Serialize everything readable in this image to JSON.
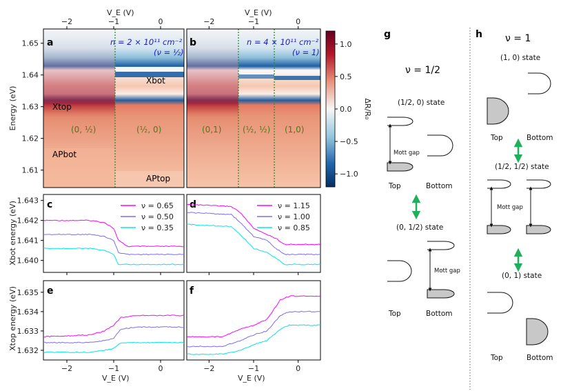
{
  "heatmaps": [
    {
      "panel": "a",
      "density": "n = 2 × 10¹¹ cm⁻²",
      "filling": "(ν = ½)",
      "labels": {
        "xbot": "Xbot",
        "xtop": "Xtop",
        "apbot": "APbot",
        "aptop": "APtop"
      },
      "regions": [
        "(0, ½)",
        "(½, 0)"
      ],
      "transitions": [
        -0.95
      ]
    },
    {
      "panel": "b",
      "density": "n = 4 × 10¹¹ cm⁻²",
      "filling": "(ν = 1)",
      "regions": [
        "(0,1)",
        "(½, ½)",
        "(1,0)"
      ],
      "transitions": [
        -1.3,
        -0.55
      ]
    }
  ],
  "colorbar": {
    "label": "ΔR/R₀",
    "ticks": [
      "1.0",
      "0.5",
      "0.0",
      "−0.5",
      "−1.0"
    ],
    "range": [
      -1.2,
      1.2
    ]
  },
  "top_axis_label": "V_E (V)",
  "bottom_axis_label": "V_E (V)",
  "x_ticks": [
    "−2",
    "−1",
    "0"
  ],
  "heatmap_y_label": "Energy (eV)",
  "heatmap_y_ticks": [
    "1.65",
    "1.64",
    "1.63",
    "1.62",
    "1.61"
  ],
  "chart_data": [
    {
      "type": "line",
      "panel": "c",
      "title": "",
      "xlabel": "",
      "ylabel": "Xbot energy (eV)",
      "xlim": [
        -2.5,
        0.5
      ],
      "ylim": [
        1.6394,
        1.6433
      ],
      "yticks": [
        "1.643",
        "1.642",
        "1.641",
        "1.640"
      ],
      "series": [
        {
          "name": "ν = 0.65",
          "color": "#ff00ff",
          "x": [
            -2.5,
            -1.5,
            -1.2,
            -1.0,
            -0.9,
            -0.7,
            0.5
          ],
          "values": [
            1.642,
            1.642,
            1.6419,
            1.6416,
            1.641,
            1.6407,
            1.6407
          ]
        },
        {
          "name": "ν = 0.50",
          "color": "#7b6cf0",
          "x": [
            -2.5,
            -1.5,
            -1.2,
            -1.0,
            -0.9,
            -0.7,
            0.5
          ],
          "values": [
            1.6413,
            1.6413,
            1.6412,
            1.641,
            1.6404,
            1.6403,
            1.6403
          ]
        },
        {
          "name": "ν = 0.35",
          "color": "#00e5e5",
          "x": [
            -2.5,
            -1.5,
            -1.2,
            -1.0,
            -0.9,
            -0.7,
            0.5
          ],
          "values": [
            1.6406,
            1.6406,
            1.6405,
            1.6403,
            1.6398,
            1.6398,
            1.6398
          ]
        }
      ]
    },
    {
      "type": "line",
      "panel": "d",
      "title": "",
      "xlabel": "",
      "ylabel": "",
      "xlim": [
        -2.5,
        0.5
      ],
      "ylim": [
        1.6394,
        1.6433
      ],
      "series": [
        {
          "name": "ν = 1.15",
          "color": "#ff00ff",
          "x": [
            -2.5,
            -1.5,
            -1.3,
            -1.0,
            -0.7,
            -0.5,
            -0.3,
            0.5
          ],
          "values": [
            1.6428,
            1.6427,
            1.6424,
            1.6416,
            1.6413,
            1.6411,
            1.6408,
            1.6408
          ]
        },
        {
          "name": "ν = 1.00",
          "color": "#7b6cf0",
          "x": [
            -2.5,
            -1.5,
            -1.3,
            -1.0,
            -0.7,
            -0.5,
            -0.3,
            0.5
          ],
          "values": [
            1.6424,
            1.6423,
            1.6419,
            1.6412,
            1.641,
            1.6406,
            1.6403,
            1.6403
          ]
        },
        {
          "name": "ν = 0.85",
          "color": "#00e5e5",
          "x": [
            -2.5,
            -1.5,
            -1.3,
            -1.0,
            -0.7,
            -0.5,
            -0.3,
            0.5
          ],
          "values": [
            1.6418,
            1.6417,
            1.6413,
            1.6406,
            1.6404,
            1.6401,
            1.6398,
            1.6398
          ]
        }
      ]
    },
    {
      "type": "line",
      "panel": "e",
      "title": "",
      "xlabel": "V_E (V)",
      "ylabel": "Xtop energy (eV)",
      "xlim": [
        -2.5,
        0.5
      ],
      "ylim": [
        1.6315,
        1.6356
      ],
      "yticks": [
        "1.635",
        "1.634",
        "1.633",
        "1.632"
      ],
      "series": [
        {
          "name": "ν = 0.65",
          "color": "#ff00ff",
          "x": [
            -2.5,
            -1.5,
            -1.2,
            -1.0,
            -0.85,
            -0.5,
            0.5
          ],
          "values": [
            1.6327,
            1.6328,
            1.633,
            1.6333,
            1.6337,
            1.6338,
            1.6338
          ]
        },
        {
          "name": "ν = 0.50",
          "color": "#7b6cf0",
          "x": [
            -2.5,
            -1.5,
            -1.2,
            -1.0,
            -0.85,
            -0.5,
            0.5
          ],
          "values": [
            1.6324,
            1.6324,
            1.6325,
            1.6326,
            1.6331,
            1.6332,
            1.6332
          ]
        },
        {
          "name": "ν = 0.35",
          "color": "#00e5e5",
          "x": [
            -2.5,
            -1.5,
            -1.2,
            -1.0,
            -0.85,
            -0.5,
            0.5
          ],
          "values": [
            1.6319,
            1.6319,
            1.632,
            1.6321,
            1.6324,
            1.6324,
            1.6324
          ]
        }
      ]
    },
    {
      "type": "line",
      "panel": "f",
      "title": "",
      "xlabel": "V_E (V)",
      "ylabel": "",
      "xlim": [
        -2.5,
        0.5
      ],
      "ylim": [
        1.6315,
        1.6356
      ],
      "series": [
        {
          "name": "ν = 1.15",
          "color": "#ff00ff",
          "x": [
            -2.5,
            -1.7,
            -1.3,
            -1.0,
            -0.7,
            -0.4,
            -0.2,
            0.5
          ],
          "values": [
            1.6327,
            1.6327,
            1.6331,
            1.6333,
            1.6336,
            1.6346,
            1.6348,
            1.6348
          ]
        },
        {
          "name": "ν = 1.00",
          "color": "#7b6cf0",
          "x": [
            -2.5,
            -1.7,
            -1.3,
            -1.0,
            -0.7,
            -0.4,
            -0.2,
            0.5
          ],
          "values": [
            1.6322,
            1.6322,
            1.6325,
            1.6328,
            1.633,
            1.6338,
            1.634,
            1.634
          ]
        },
        {
          "name": "ν = 0.85",
          "color": "#00e5e5",
          "x": [
            -2.5,
            -1.7,
            -1.3,
            -1.0,
            -0.7,
            -0.4,
            -0.2,
            0.5
          ],
          "values": [
            1.6318,
            1.6318,
            1.632,
            1.6323,
            1.6325,
            1.6331,
            1.6333,
            1.6333
          ]
        }
      ]
    }
  ],
  "diagram_g": {
    "panel": "g",
    "title": "ν = 1/2",
    "state1": "(1/2, 0) state",
    "state2": "(0, 1/2) state",
    "mott": "Mott gap",
    "top": "Top",
    "bottom": "Bottom"
  },
  "diagram_h": {
    "panel": "h",
    "title": "ν = 1",
    "state1": "(1, 0) state",
    "state2": "(1/2, 1/2) state",
    "state3": "(0, 1) state",
    "mott": "Mott gap",
    "top": "Top",
    "bottom": "Bottom"
  },
  "colors": {
    "green_arrow": "#1fb05a",
    "dotted_line": "#2e8b2e",
    "red": "#b2182b",
    "blue": "#2166ac"
  }
}
